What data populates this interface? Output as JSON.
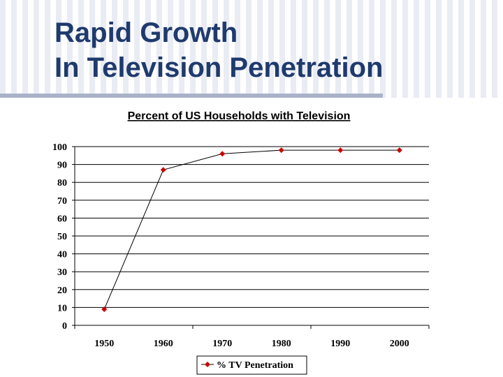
{
  "slide": {
    "title_line1": "Rapid Growth",
    "title_line2": "In Television Penetration"
  },
  "colors": {
    "title": "#1f3a6d",
    "marker": "#cc0000",
    "line": "#000000"
  },
  "chart_data": {
    "type": "line",
    "title": "Percent of US Households with Television",
    "xlabel": "",
    "ylabel": "",
    "categories": [
      "1950",
      "1960",
      "1970",
      "1980",
      "1990",
      "2000"
    ],
    "series": [
      {
        "name": "% TV Penetration",
        "values": [
          9,
          87,
          96,
          98,
          98,
          98
        ]
      }
    ],
    "ylim": [
      0,
      100
    ],
    "yticks": [
      "0",
      "10",
      "20",
      "30",
      "40",
      "50",
      "60",
      "70",
      "80",
      "90",
      "100"
    ],
    "grid": true,
    "legend": "bottom"
  }
}
